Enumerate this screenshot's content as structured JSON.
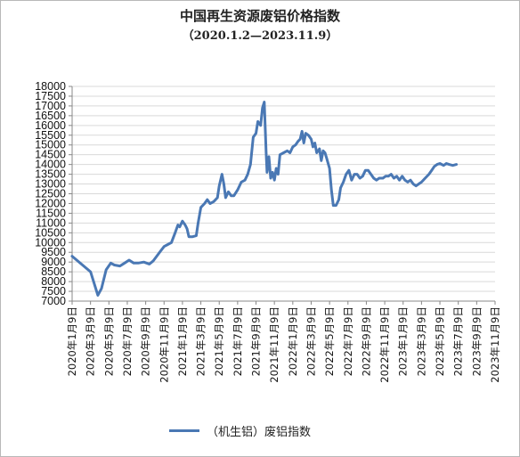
{
  "chart_data": {
    "type": "line",
    "title": "中国再生资源废铝价格指数",
    "subtitle": "（2020.1.2—2023.11.9）",
    "legend": "top-left",
    "legend_position": "bottom",
    "color": "#4a78b4",
    "ylim": [
      7000,
      18000
    ],
    "yticks": [
      "18000",
      "17500",
      "17000",
      "16500",
      "16000",
      "15500",
      "15000",
      "14500",
      "14000",
      "13500",
      "13000",
      "12500",
      "12000",
      "11500",
      "11000",
      "10500",
      "10000",
      "9500",
      "9000",
      "8500",
      "8000",
      "7500",
      "7000"
    ],
    "xticks": [
      "2020年1月9日",
      "2020年3月9日",
      "2020年5月9日",
      "2020年7月9日",
      "2020年9月9日",
      "2020年11月9日",
      "2021年1月9日",
      "2021年3月9日",
      "2021年5月9日",
      "2021年7月9日",
      "2021年9月9日",
      "2021年11月9日",
      "2022年1月9日",
      "2022年3月9日",
      "2022年5月9日",
      "2022年7月9日",
      "2022年9月9日",
      "2022年11月9日",
      "2023年1月9日",
      "2023年3月9日",
      "2023年5月9日",
      "2023年7月9日",
      "2023年9月9日",
      "2023年11月9日"
    ],
    "series": [
      {
        "name": "（机生铝）废铝指数",
        "points": [
          [
            0.0,
            9300
          ],
          [
            1.0,
            8500
          ],
          [
            1.4,
            7300
          ],
          [
            1.6,
            7650
          ],
          [
            1.85,
            8600
          ],
          [
            2.1,
            8950
          ],
          [
            2.3,
            8850
          ],
          [
            2.6,
            8800
          ],
          [
            2.85,
            8950
          ],
          [
            3.1,
            9100
          ],
          [
            3.35,
            8950
          ],
          [
            3.6,
            8950
          ],
          [
            3.9,
            9000
          ],
          [
            4.2,
            8900
          ],
          [
            4.4,
            9050
          ],
          [
            4.6,
            9300
          ],
          [
            4.8,
            9550
          ],
          [
            5.0,
            9800
          ],
          [
            5.2,
            9900
          ],
          [
            5.4,
            10000
          ],
          [
            5.6,
            10500
          ],
          [
            5.75,
            10900
          ],
          [
            5.85,
            10800
          ],
          [
            6.0,
            11100
          ],
          [
            6.15,
            10900
          ],
          [
            6.25,
            10700
          ],
          [
            6.35,
            10300
          ],
          [
            6.55,
            10300
          ],
          [
            6.75,
            10350
          ],
          [
            6.85,
            11000
          ],
          [
            7.0,
            11800
          ],
          [
            7.2,
            12000
          ],
          [
            7.35,
            12200
          ],
          [
            7.5,
            12000
          ],
          [
            7.7,
            12100
          ],
          [
            7.9,
            12300
          ],
          [
            8.0,
            12900
          ],
          [
            8.15,
            13500
          ],
          [
            8.25,
            13000
          ],
          [
            8.35,
            12300
          ],
          [
            8.5,
            12600
          ],
          [
            8.65,
            12400
          ],
          [
            8.8,
            12400
          ],
          [
            9.0,
            12700
          ],
          [
            9.2,
            13100
          ],
          [
            9.4,
            13200
          ],
          [
            9.55,
            13500
          ],
          [
            9.7,
            14000
          ],
          [
            9.85,
            15400
          ],
          [
            10.0,
            15600
          ],
          [
            10.1,
            16200
          ],
          [
            10.25,
            16000
          ],
          [
            10.35,
            16900
          ],
          [
            10.45,
            17200
          ],
          [
            10.55,
            14600
          ],
          [
            10.6,
            13600
          ],
          [
            10.7,
            14400
          ],
          [
            10.8,
            13300
          ],
          [
            10.9,
            13600
          ],
          [
            11.0,
            13200
          ],
          [
            11.1,
            13800
          ],
          [
            11.2,
            13500
          ],
          [
            11.3,
            14500
          ],
          [
            11.5,
            14600
          ],
          [
            11.7,
            14700
          ],
          [
            11.85,
            14600
          ],
          [
            12.0,
            14900
          ],
          [
            12.15,
            15000
          ],
          [
            12.3,
            15200
          ],
          [
            12.4,
            15300
          ],
          [
            12.5,
            15700
          ],
          [
            12.6,
            15100
          ],
          [
            12.7,
            15600
          ],
          [
            12.85,
            15500
          ],
          [
            13.0,
            15300
          ],
          [
            13.1,
            14900
          ],
          [
            13.2,
            15100
          ],
          [
            13.3,
            14600
          ],
          [
            13.45,
            14800
          ],
          [
            13.55,
            14200
          ],
          [
            13.65,
            14700
          ],
          [
            13.75,
            14600
          ],
          [
            13.85,
            14300
          ],
          [
            14.0,
            13800
          ],
          [
            14.1,
            12700
          ],
          [
            14.2,
            11900
          ],
          [
            14.35,
            11900
          ],
          [
            14.5,
            12200
          ],
          [
            14.6,
            12800
          ],
          [
            14.75,
            13100
          ],
          [
            14.9,
            13500
          ],
          [
            15.05,
            13700
          ],
          [
            15.2,
            13200
          ],
          [
            15.35,
            13500
          ],
          [
            15.5,
            13500
          ],
          [
            15.65,
            13300
          ],
          [
            15.8,
            13400
          ],
          [
            15.95,
            13700
          ],
          [
            16.1,
            13700
          ],
          [
            16.25,
            13500
          ],
          [
            16.4,
            13300
          ],
          [
            16.55,
            13200
          ],
          [
            16.7,
            13300
          ],
          [
            16.9,
            13300
          ],
          [
            17.05,
            13400
          ],
          [
            17.2,
            13400
          ],
          [
            17.35,
            13500
          ],
          [
            17.5,
            13300
          ],
          [
            17.65,
            13400
          ],
          [
            17.8,
            13200
          ],
          [
            17.95,
            13400
          ],
          [
            18.1,
            13200
          ],
          [
            18.25,
            13100
          ],
          [
            18.4,
            13200
          ],
          [
            18.55,
            13000
          ],
          [
            18.7,
            12900
          ],
          [
            18.85,
            13000
          ],
          [
            19.0,
            13100
          ],
          [
            19.2,
            13300
          ],
          [
            19.4,
            13500
          ],
          [
            19.55,
            13700
          ],
          [
            19.7,
            13900
          ],
          [
            19.85,
            14000
          ],
          [
            20.0,
            14050
          ],
          [
            20.2,
            13950
          ],
          [
            20.35,
            14050
          ],
          [
            20.5,
            14000
          ],
          [
            20.7,
            13950
          ],
          [
            20.9,
            14000
          ]
        ]
      }
    ]
  }
}
